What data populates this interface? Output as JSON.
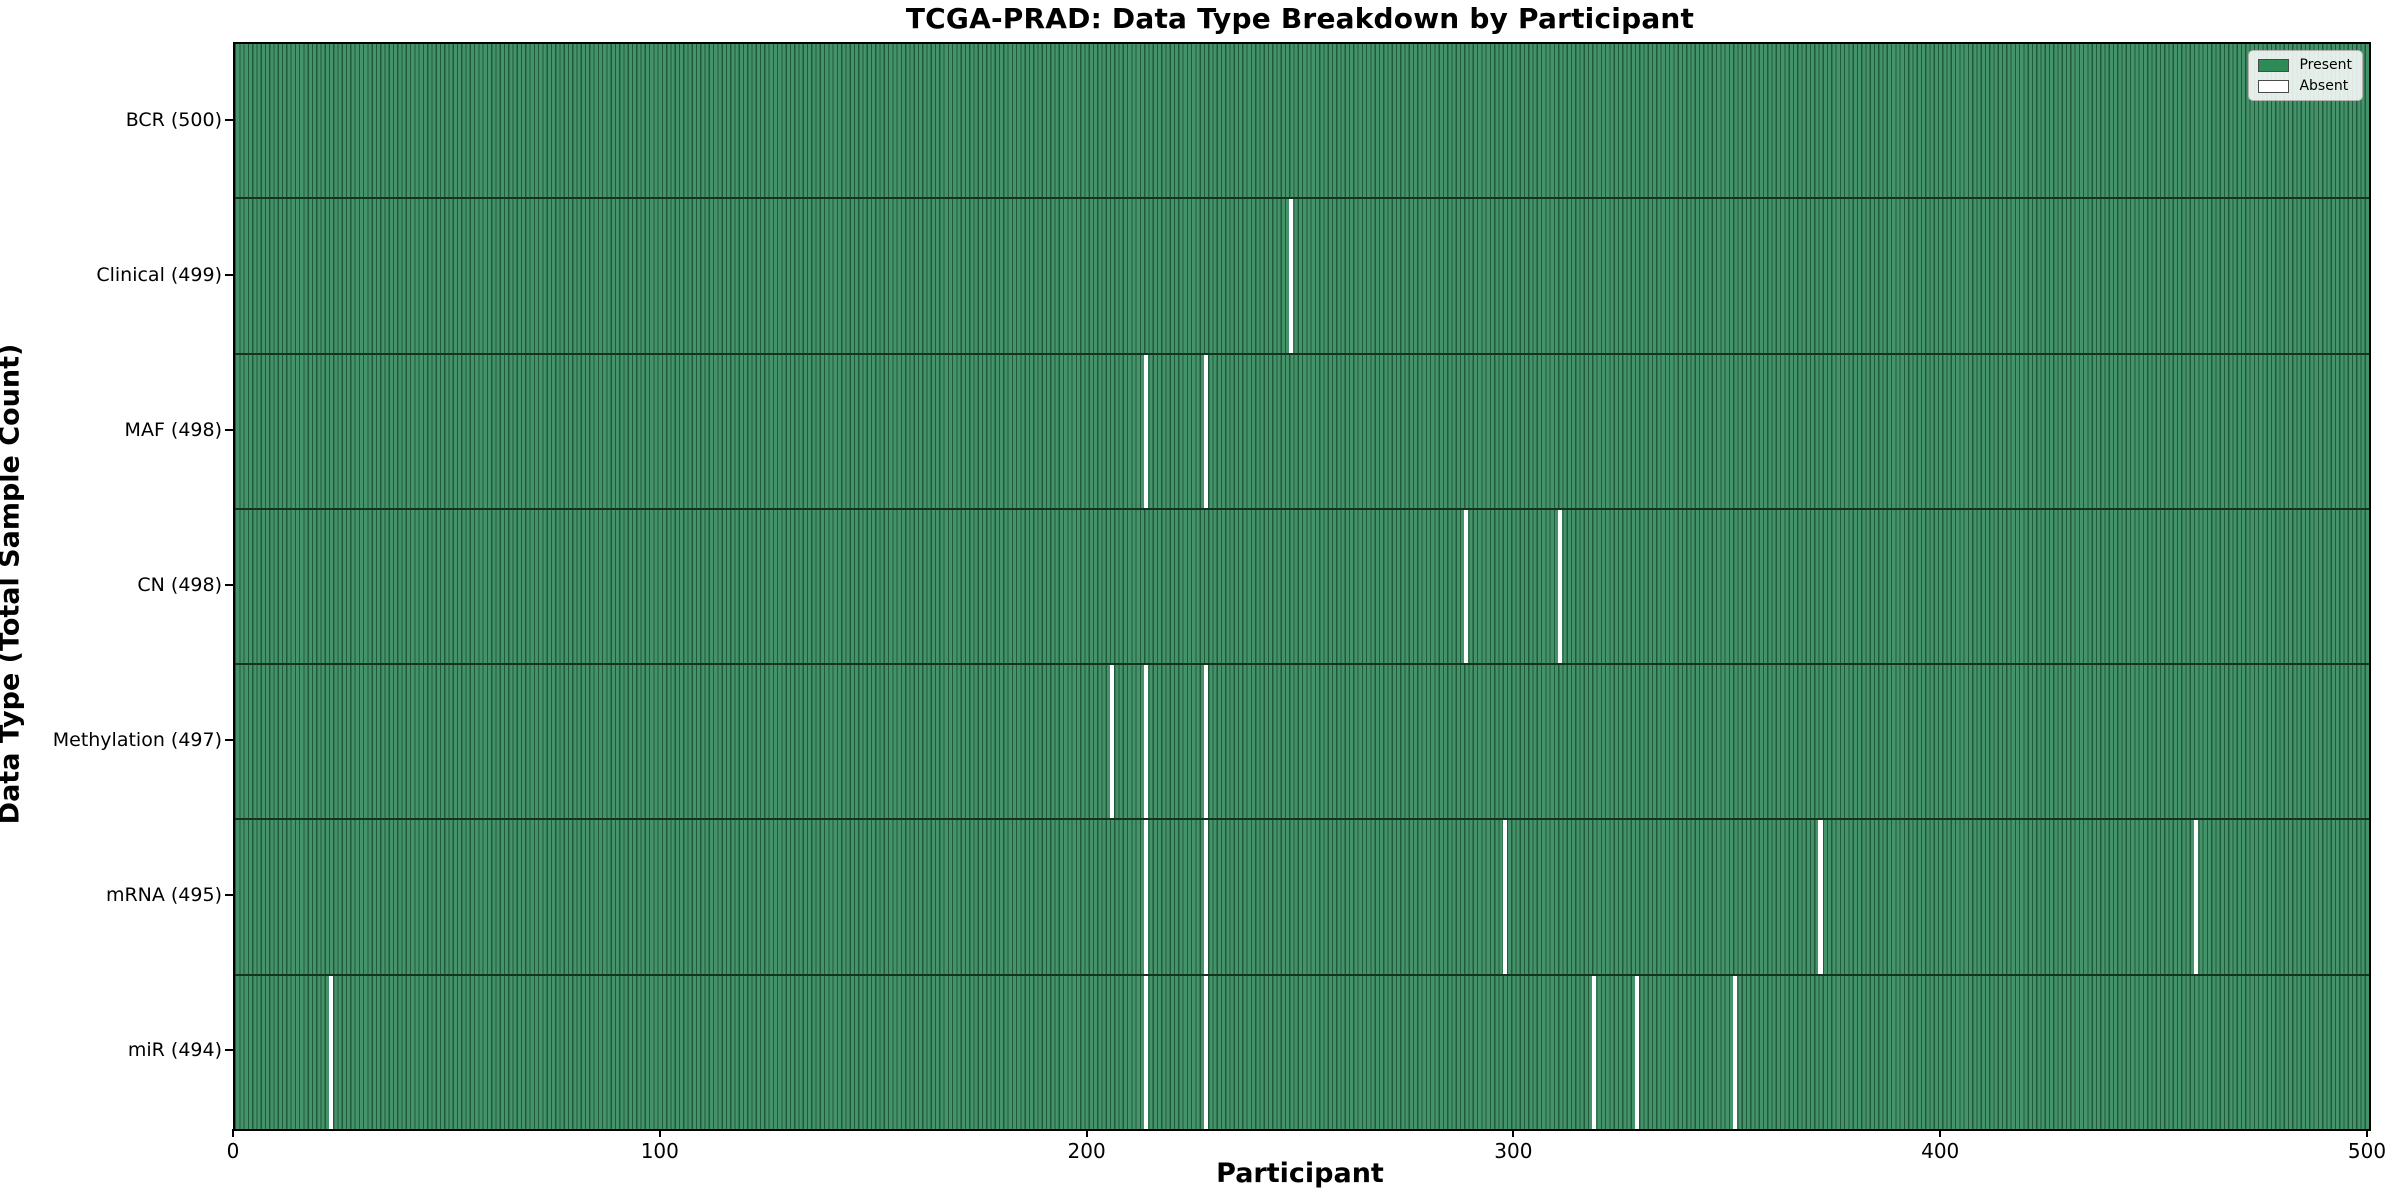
{
  "chart_data": {
    "type": "heatmap",
    "title": "TCGA-PRAD: Data Type Breakdown by Participant",
    "xlabel": "Participant",
    "ylabel": "Data Type (Total Sample Count)",
    "n_participants": 500,
    "xlim": [
      0,
      500
    ],
    "xticks": [
      0,
      100,
      200,
      300,
      400,
      500
    ],
    "grid": false,
    "legend": {
      "position": "upper right",
      "entries": [
        {
          "label": "Present",
          "color": "#2e8b57"
        },
        {
          "label": "Absent",
          "color": "#ffffff"
        }
      ]
    },
    "rows": [
      {
        "name": "BCR",
        "label": "BCR (500)",
        "total": 500,
        "absent_participants": []
      },
      {
        "name": "Clinical",
        "label": "Clinical (499)",
        "total": 499,
        "absent_participants": [
          247
        ]
      },
      {
        "name": "MAF",
        "label": "MAF (498)",
        "total": 498,
        "absent_participants": [
          213,
          227
        ]
      },
      {
        "name": "CN",
        "label": "CN (498)",
        "total": 498,
        "absent_participants": [
          288,
          310
        ]
      },
      {
        "name": "Methylation",
        "label": "Methylation (497)",
        "total": 497,
        "absent_participants": [
          205,
          213,
          227
        ]
      },
      {
        "name": "mRNA",
        "label": "mRNA (495)",
        "total": 495,
        "absent_participants": [
          213,
          227,
          297,
          371,
          459
        ]
      },
      {
        "name": "miR",
        "label": "miR (494)",
        "total": 494,
        "absent_participants": [
          22,
          213,
          227,
          318,
          328,
          351
        ]
      }
    ],
    "colors": {
      "present_fill": "#45936a",
      "present_edge": "#1f5a3a",
      "absent": "#ffffff",
      "row_divider": "#16331f",
      "axis_spine": "#000000",
      "background": "#ffffff"
    }
  }
}
